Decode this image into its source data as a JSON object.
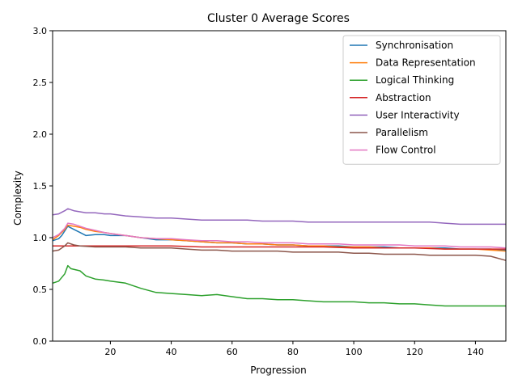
{
  "chart_data": {
    "type": "line",
    "title": "Cluster 0 Average Scores",
    "xlabel": "Progression",
    "ylabel": "Complexity",
    "xlim": [
      1,
      150
    ],
    "ylim": [
      0,
      3
    ],
    "xticks": [
      20,
      40,
      60,
      80,
      100,
      120,
      140
    ],
    "yticks": [
      0.0,
      0.5,
      1.0,
      1.5,
      2.0,
      2.5,
      3.0
    ],
    "grid": false,
    "legend_position": "top-right",
    "series": [
      {
        "name": "Synchronisation",
        "color": "#1f77b4",
        "points": [
          [
            1,
            0.97
          ],
          [
            3,
            0.99
          ],
          [
            4,
            1.02
          ],
          [
            6,
            1.11
          ],
          [
            8,
            1.08
          ],
          [
            10,
            1.05
          ],
          [
            12,
            1.02
          ],
          [
            15,
            1.03
          ],
          [
            18,
            1.03
          ],
          [
            20,
            1.02
          ],
          [
            25,
            1.02
          ],
          [
            30,
            1.0
          ],
          [
            35,
            0.98
          ],
          [
            40,
            0.98
          ],
          [
            45,
            0.97
          ],
          [
            50,
            0.96
          ],
          [
            55,
            0.95
          ],
          [
            60,
            0.95
          ],
          [
            65,
            0.94
          ],
          [
            70,
            0.94
          ],
          [
            75,
            0.93
          ],
          [
            80,
            0.93
          ],
          [
            85,
            0.92
          ],
          [
            90,
            0.92
          ],
          [
            95,
            0.92
          ],
          [
            100,
            0.91
          ],
          [
            105,
            0.91
          ],
          [
            110,
            0.91
          ],
          [
            115,
            0.9
          ],
          [
            120,
            0.9
          ],
          [
            125,
            0.9
          ],
          [
            130,
            0.9
          ],
          [
            135,
            0.89
          ],
          [
            140,
            0.89
          ],
          [
            145,
            0.89
          ],
          [
            150,
            0.88
          ]
        ]
      },
      {
        "name": "Data Representation",
        "color": "#ff7f0e",
        "points": [
          [
            1,
            0.98
          ],
          [
            3,
            1.02
          ],
          [
            5,
            1.08
          ],
          [
            6,
            1.12
          ],
          [
            8,
            1.11
          ],
          [
            10,
            1.1
          ],
          [
            12,
            1.08
          ],
          [
            15,
            1.06
          ],
          [
            18,
            1.05
          ],
          [
            20,
            1.04
          ],
          [
            25,
            1.02
          ],
          [
            30,
            1.0
          ],
          [
            35,
            0.99
          ],
          [
            40,
            0.98
          ],
          [
            45,
            0.97
          ],
          [
            50,
            0.96
          ],
          [
            55,
            0.95
          ],
          [
            60,
            0.95
          ],
          [
            65,
            0.94
          ],
          [
            70,
            0.94
          ],
          [
            75,
            0.93
          ],
          [
            80,
            0.93
          ],
          [
            85,
            0.92
          ],
          [
            90,
            0.92
          ],
          [
            95,
            0.91
          ],
          [
            100,
            0.91
          ],
          [
            105,
            0.91
          ],
          [
            110,
            0.9
          ],
          [
            115,
            0.9
          ],
          [
            120,
            0.9
          ],
          [
            125,
            0.9
          ],
          [
            130,
            0.89
          ],
          [
            135,
            0.89
          ],
          [
            140,
            0.89
          ],
          [
            145,
            0.88
          ],
          [
            150,
            0.87
          ]
        ]
      },
      {
        "name": "Logical Thinking",
        "color": "#2ca02c",
        "points": [
          [
            1,
            0.56
          ],
          [
            3,
            0.58
          ],
          [
            5,
            0.65
          ],
          [
            6,
            0.73
          ],
          [
            7,
            0.7
          ],
          [
            10,
            0.68
          ],
          [
            12,
            0.63
          ],
          [
            15,
            0.6
          ],
          [
            18,
            0.59
          ],
          [
            20,
            0.58
          ],
          [
            25,
            0.56
          ],
          [
            30,
            0.51
          ],
          [
            35,
            0.47
          ],
          [
            40,
            0.46
          ],
          [
            45,
            0.45
          ],
          [
            50,
            0.44
          ],
          [
            55,
            0.45
          ],
          [
            60,
            0.43
          ],
          [
            65,
            0.41
          ],
          [
            70,
            0.41
          ],
          [
            75,
            0.4
          ],
          [
            80,
            0.4
          ],
          [
            85,
            0.39
          ],
          [
            90,
            0.38
          ],
          [
            95,
            0.38
          ],
          [
            100,
            0.38
          ],
          [
            105,
            0.37
          ],
          [
            110,
            0.37
          ],
          [
            115,
            0.36
          ],
          [
            120,
            0.36
          ],
          [
            125,
            0.35
          ],
          [
            130,
            0.34
          ],
          [
            135,
            0.34
          ],
          [
            140,
            0.34
          ],
          [
            145,
            0.34
          ],
          [
            150,
            0.34
          ]
        ]
      },
      {
        "name": "Abstraction",
        "color": "#d62728",
        "points": [
          [
            1,
            0.92
          ],
          [
            10,
            0.92
          ],
          [
            20,
            0.92
          ],
          [
            30,
            0.92
          ],
          [
            40,
            0.92
          ],
          [
            50,
            0.91
          ],
          [
            60,
            0.91
          ],
          [
            70,
            0.91
          ],
          [
            80,
            0.91
          ],
          [
            90,
            0.91
          ],
          [
            100,
            0.9
          ],
          [
            110,
            0.9
          ],
          [
            120,
            0.9
          ],
          [
            130,
            0.89
          ],
          [
            140,
            0.89
          ],
          [
            150,
            0.89
          ]
        ]
      },
      {
        "name": "User Interactivity",
        "color": "#9467bd",
        "points": [
          [
            1,
            1.22
          ],
          [
            3,
            1.23
          ],
          [
            5,
            1.26
          ],
          [
            6,
            1.28
          ],
          [
            8,
            1.26
          ],
          [
            10,
            1.25
          ],
          [
            12,
            1.24
          ],
          [
            15,
            1.24
          ],
          [
            18,
            1.23
          ],
          [
            20,
            1.23
          ],
          [
            25,
            1.21
          ],
          [
            30,
            1.2
          ],
          [
            35,
            1.19
          ],
          [
            40,
            1.19
          ],
          [
            45,
            1.18
          ],
          [
            50,
            1.17
          ],
          [
            55,
            1.17
          ],
          [
            60,
            1.17
          ],
          [
            65,
            1.17
          ],
          [
            70,
            1.16
          ],
          [
            75,
            1.16
          ],
          [
            80,
            1.16
          ],
          [
            85,
            1.15
          ],
          [
            90,
            1.15
          ],
          [
            95,
            1.15
          ],
          [
            100,
            1.15
          ],
          [
            105,
            1.15
          ],
          [
            110,
            1.15
          ],
          [
            115,
            1.15
          ],
          [
            120,
            1.15
          ],
          [
            125,
            1.15
          ],
          [
            130,
            1.14
          ],
          [
            135,
            1.13
          ],
          [
            140,
            1.13
          ],
          [
            145,
            1.13
          ],
          [
            150,
            1.13
          ]
        ]
      },
      {
        "name": "Parallelism",
        "color": "#8c564b",
        "points": [
          [
            1,
            0.87
          ],
          [
            3,
            0.88
          ],
          [
            5,
            0.92
          ],
          [
            6,
            0.95
          ],
          [
            8,
            0.93
          ],
          [
            10,
            0.92
          ],
          [
            15,
            0.91
          ],
          [
            20,
            0.91
          ],
          [
            25,
            0.91
          ],
          [
            30,
            0.9
          ],
          [
            35,
            0.9
          ],
          [
            40,
            0.9
          ],
          [
            45,
            0.89
          ],
          [
            50,
            0.88
          ],
          [
            55,
            0.88
          ],
          [
            60,
            0.87
          ],
          [
            65,
            0.87
          ],
          [
            70,
            0.87
          ],
          [
            75,
            0.87
          ],
          [
            80,
            0.86
          ],
          [
            85,
            0.86
          ],
          [
            90,
            0.86
          ],
          [
            95,
            0.86
          ],
          [
            100,
            0.85
          ],
          [
            105,
            0.85
          ],
          [
            110,
            0.84
          ],
          [
            115,
            0.84
          ],
          [
            120,
            0.84
          ],
          [
            125,
            0.83
          ],
          [
            130,
            0.83
          ],
          [
            135,
            0.83
          ],
          [
            140,
            0.83
          ],
          [
            145,
            0.82
          ],
          [
            150,
            0.78
          ]
        ]
      },
      {
        "name": "Flow Control",
        "color": "#e377c2",
        "points": [
          [
            1,
            1.0
          ],
          [
            3,
            1.03
          ],
          [
            5,
            1.09
          ],
          [
            6,
            1.14
          ],
          [
            8,
            1.13
          ],
          [
            10,
            1.11
          ],
          [
            12,
            1.09
          ],
          [
            15,
            1.07
          ],
          [
            18,
            1.05
          ],
          [
            20,
            1.04
          ],
          [
            25,
            1.02
          ],
          [
            30,
            1.0
          ],
          [
            35,
            0.99
          ],
          [
            40,
            0.99
          ],
          [
            45,
            0.98
          ],
          [
            50,
            0.97
          ],
          [
            55,
            0.97
          ],
          [
            60,
            0.96
          ],
          [
            65,
            0.96
          ],
          [
            70,
            0.95
          ],
          [
            75,
            0.95
          ],
          [
            80,
            0.95
          ],
          [
            85,
            0.94
          ],
          [
            90,
            0.94
          ],
          [
            95,
            0.94
          ],
          [
            100,
            0.93
          ],
          [
            105,
            0.93
          ],
          [
            110,
            0.93
          ],
          [
            115,
            0.93
          ],
          [
            120,
            0.92
          ],
          [
            125,
            0.92
          ],
          [
            130,
            0.92
          ],
          [
            135,
            0.91
          ],
          [
            140,
            0.91
          ],
          [
            145,
            0.91
          ],
          [
            150,
            0.9
          ]
        ]
      }
    ]
  }
}
